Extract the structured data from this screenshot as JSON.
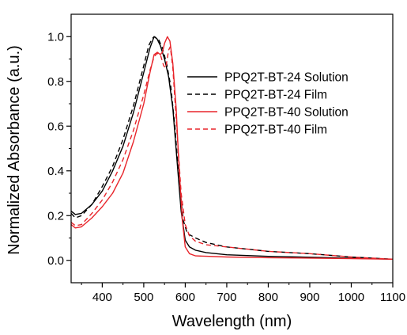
{
  "chart_data": {
    "type": "line",
    "xlabel": "Wavelength (nm)",
    "ylabel": "Normalized Absorbance (a.u.)",
    "xlim": [
      325,
      1100
    ],
    "ylim": [
      -0.1,
      1.1
    ],
    "x_ticks": [
      400,
      500,
      600,
      700,
      800,
      900,
      1000,
      1100
    ],
    "y_ticks": [
      0.0,
      0.2,
      0.4,
      0.6,
      0.8,
      1.0
    ],
    "x_tick_labels": [
      "400",
      "500",
      "600",
      "700",
      "800",
      "900",
      "1000",
      "1100"
    ],
    "y_tick_labels": [
      "0.0",
      "0.2",
      "0.4",
      "0.6",
      "0.8",
      "1.0"
    ],
    "legend_position": "top-right",
    "series": [
      {
        "name": "PPQ2T-BT-24 Solution",
        "color": "#000000",
        "dash": "solid",
        "points": [
          [
            325,
            0.22
          ],
          [
            335,
            0.205
          ],
          [
            350,
            0.21
          ],
          [
            375,
            0.25
          ],
          [
            400,
            0.31
          ],
          [
            425,
            0.4
          ],
          [
            450,
            0.51
          ],
          [
            475,
            0.66
          ],
          [
            500,
            0.84
          ],
          [
            515,
            0.95
          ],
          [
            525,
            1.0
          ],
          [
            532,
            0.99
          ],
          [
            540,
            0.96
          ],
          [
            550,
            0.9
          ],
          [
            560,
            0.82
          ],
          [
            570,
            0.68
          ],
          [
            580,
            0.45
          ],
          [
            590,
            0.22
          ],
          [
            600,
            0.09
          ],
          [
            610,
            0.06
          ],
          [
            625,
            0.045
          ],
          [
            650,
            0.035
          ],
          [
            700,
            0.025
          ],
          [
            800,
            0.018
          ],
          [
            900,
            0.014
          ],
          [
            1000,
            0.01
          ],
          [
            1100,
            0.005
          ]
        ]
      },
      {
        "name": "PPQ2T-BT-24 Film",
        "color": "#000000",
        "dash": "dashed",
        "points": [
          [
            325,
            0.21
          ],
          [
            335,
            0.19
          ],
          [
            350,
            0.2
          ],
          [
            375,
            0.25
          ],
          [
            400,
            0.33
          ],
          [
            425,
            0.42
          ],
          [
            450,
            0.54
          ],
          [
            475,
            0.69
          ],
          [
            500,
            0.87
          ],
          [
            512,
            0.96
          ],
          [
            520,
            0.99
          ],
          [
            525,
            1.0
          ],
          [
            535,
            0.99
          ],
          [
            545,
            0.95
          ],
          [
            555,
            0.88
          ],
          [
            565,
            0.78
          ],
          [
            575,
            0.6
          ],
          [
            585,
            0.36
          ],
          [
            595,
            0.18
          ],
          [
            605,
            0.12
          ],
          [
            625,
            0.1
          ],
          [
            650,
            0.08
          ],
          [
            700,
            0.06
          ],
          [
            750,
            0.05
          ],
          [
            800,
            0.04
          ],
          [
            900,
            0.03
          ],
          [
            1000,
            0.015
          ],
          [
            1100,
            0.005
          ]
        ]
      },
      {
        "name": "PPQ2T-BT-40 Solution",
        "color": "#e8252b",
        "dash": "solid",
        "points": [
          [
            325,
            0.16
          ],
          [
            335,
            0.145
          ],
          [
            350,
            0.15
          ],
          [
            375,
            0.19
          ],
          [
            400,
            0.24
          ],
          [
            425,
            0.3
          ],
          [
            450,
            0.39
          ],
          [
            475,
            0.53
          ],
          [
            500,
            0.7
          ],
          [
            515,
            0.84
          ],
          [
            525,
            0.92
          ],
          [
            533,
            0.93
          ],
          [
            540,
            0.92
          ],
          [
            545,
            0.93
          ],
          [
            550,
            0.97
          ],
          [
            557,
            1.0
          ],
          [
            563,
            0.98
          ],
          [
            570,
            0.88
          ],
          [
            578,
            0.68
          ],
          [
            585,
            0.42
          ],
          [
            593,
            0.18
          ],
          [
            600,
            0.06
          ],
          [
            610,
            0.03
          ],
          [
            625,
            0.02
          ],
          [
            700,
            0.015
          ],
          [
            800,
            0.012
          ],
          [
            900,
            0.01
          ],
          [
            1000,
            0.008
          ],
          [
            1100,
            0.005
          ]
        ]
      },
      {
        "name": "PPQ2T-BT-40 Film",
        "color": "#e8252b",
        "dash": "dashed",
        "points": [
          [
            325,
            0.17
          ],
          [
            335,
            0.155
          ],
          [
            350,
            0.16
          ],
          [
            375,
            0.21
          ],
          [
            400,
            0.27
          ],
          [
            425,
            0.35
          ],
          [
            450,
            0.45
          ],
          [
            475,
            0.58
          ],
          [
            500,
            0.74
          ],
          [
            515,
            0.85
          ],
          [
            525,
            0.91
          ],
          [
            532,
            0.925
          ],
          [
            540,
            0.92
          ],
          [
            548,
            0.87
          ],
          [
            553,
            0.86
          ],
          [
            560,
            0.94
          ],
          [
            564,
            0.955
          ],
          [
            570,
            0.86
          ],
          [
            580,
            0.58
          ],
          [
            590,
            0.3
          ],
          [
            600,
            0.16
          ],
          [
            610,
            0.11
          ],
          [
            625,
            0.085
          ],
          [
            650,
            0.07
          ],
          [
            700,
            0.06
          ],
          [
            750,
            0.05
          ],
          [
            800,
            0.04
          ],
          [
            900,
            0.03
          ],
          [
            1000,
            0.015
          ],
          [
            1100,
            0.005
          ]
        ]
      }
    ]
  }
}
